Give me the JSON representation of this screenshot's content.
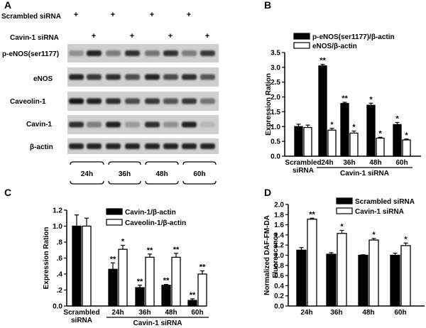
{
  "panel_letters": [
    "A",
    "B",
    "C",
    "D"
  ],
  "panelA": {
    "treatments": [
      {
        "label": "Scrambled siRNA",
        "marks": [
          "+",
          "",
          "+",
          "",
          "+",
          "",
          "+",
          ""
        ]
      },
      {
        "label": "Cavin-1 siRNA",
        "marks": [
          "",
          "+",
          "",
          "+",
          "",
          "+",
          "",
          "+"
        ]
      }
    ],
    "blots": [
      {
        "label": "p-eNOS(ser1177)",
        "intensity": [
          0.35,
          0.9,
          0.45,
          0.85,
          0.5,
          0.85,
          0.45,
          0.8
        ]
      },
      {
        "label": "eNOS",
        "intensity": [
          0.9,
          0.8,
          0.85,
          0.7,
          0.9,
          0.7,
          0.85,
          0.65
        ]
      },
      {
        "label": "Caveolin-1",
        "intensity": [
          0.95,
          0.9,
          0.85,
          0.7,
          0.8,
          0.65,
          0.8,
          0.5
        ]
      },
      {
        "label": "Cavin-1",
        "intensity": [
          0.85,
          0.45,
          0.9,
          0.3,
          0.85,
          0.35,
          0.9,
          0.15
        ]
      },
      {
        "label": "β-actin",
        "intensity": [
          0.9,
          0.9,
          0.9,
          0.9,
          0.9,
          0.9,
          0.9,
          0.9
        ]
      }
    ],
    "timepoints": [
      "24h",
      "36h",
      "48h",
      "60h"
    ]
  },
  "chart_data": [
    {
      "panel": "B",
      "type": "bar",
      "ylabel": "Expression Ration",
      "ylim": [
        0,
        3.5
      ],
      "yticks": [
        "0.0",
        "0.5",
        "1.0",
        "1.5",
        "2.0",
        "2.5",
        "3.0",
        "3.5"
      ],
      "categories": [
        "Scrambled siRNA",
        "24h",
        "36h",
        "48h",
        "60h"
      ],
      "category_labels": [
        [
          "Scrambled",
          "siRNA"
        ],
        [
          "24h"
        ],
        [
          "36h"
        ],
        [
          "48h"
        ],
        [
          "60h"
        ]
      ],
      "group_label": "Cavin-1 siRNA",
      "legend_position": "top-right",
      "series": [
        {
          "name": "p-eNOS(ser1177)/β-actin",
          "fill": "black",
          "values": [
            1.0,
            3.05,
            1.78,
            1.72,
            1.07
          ],
          "errors": [
            0.08,
            0.05,
            0.04,
            0.07,
            0.07
          ],
          "sig": [
            "",
            "**",
            "**",
            "*",
            "*"
          ]
        },
        {
          "name": "eNOS/β-actin",
          "fill": "white",
          "values": [
            0.97,
            0.88,
            0.78,
            0.61,
            0.55
          ],
          "errors": [
            0.08,
            0.06,
            0.07,
            0.03,
            0.03
          ],
          "sig": [
            "",
            "*",
            "*",
            "*",
            "*"
          ]
        }
      ]
    },
    {
      "panel": "C",
      "type": "bar",
      "ylabel": "Expression Ration",
      "ylim": [
        0,
        1.2
      ],
      "yticks": [
        "0.0",
        ".2",
        ".4",
        ".6",
        ".8",
        "1.0",
        "1.2"
      ],
      "categories": [
        "Scrambled siRNA",
        "24h",
        "36h",
        "48h",
        "60h"
      ],
      "category_labels": [
        [
          "Scrambled",
          "siRNA"
        ],
        [
          "24h"
        ],
        [
          "36h"
        ],
        [
          "48h"
        ],
        [
          "60h"
        ]
      ],
      "group_label": "Cavin-1 siRNA",
      "legend_position": "top-right",
      "series": [
        {
          "name": "Cavin-1/β-actin",
          "fill": "black",
          "values": [
            1.0,
            0.46,
            0.23,
            0.26,
            0.07
          ],
          "errors": [
            0.14,
            0.08,
            0.03,
            0.01,
            0.02
          ],
          "sig": [
            "",
            "**",
            "**",
            "**",
            "**"
          ]
        },
        {
          "name": "Caveolin-1/β-actin",
          "fill": "white",
          "values": [
            1.0,
            0.71,
            0.61,
            0.61,
            0.4
          ],
          "errors": [
            0.1,
            0.05,
            0.04,
            0.05,
            0.04
          ],
          "sig": [
            "",
            "*",
            "**",
            "**",
            "**"
          ]
        }
      ]
    },
    {
      "panel": "D",
      "type": "bar",
      "ylabel": "Normalized DAF-FM-DA Fluorescence",
      "ylabel_lines": [
        "Normalized DAF-FM-DA",
        "Fluorescence"
      ],
      "ylim": [
        0,
        2.0
      ],
      "yticks": [
        "0.0",
        "0.2",
        "0.4",
        "0.6",
        "0.8",
        "1.0",
        "1.2",
        "1.4",
        "1.6",
        "1.8",
        "2.0"
      ],
      "categories": [
        "24h",
        "36h",
        "48h",
        "60h"
      ],
      "category_labels": [
        [
          "24h"
        ],
        [
          "36h"
        ],
        [
          "48h"
        ],
        [
          "60h"
        ]
      ],
      "group_label": "",
      "legend_position": "top-right",
      "series": [
        {
          "name": "Scrambled siRNA",
          "fill": "black",
          "values": [
            1.1,
            1.02,
            1.0,
            1.0
          ],
          "errors": [
            0.05,
            0.03,
            0.01,
            0.04
          ],
          "sig": [
            "",
            "",
            "",
            ""
          ]
        },
        {
          "name": "Cavin-1 siRNA",
          "fill": "white",
          "values": [
            1.71,
            1.43,
            1.3,
            1.19
          ],
          "errors": [
            0.02,
            0.06,
            0.03,
            0.05
          ],
          "sig": [
            "**",
            "*",
            "*",
            "*"
          ]
        }
      ]
    }
  ]
}
